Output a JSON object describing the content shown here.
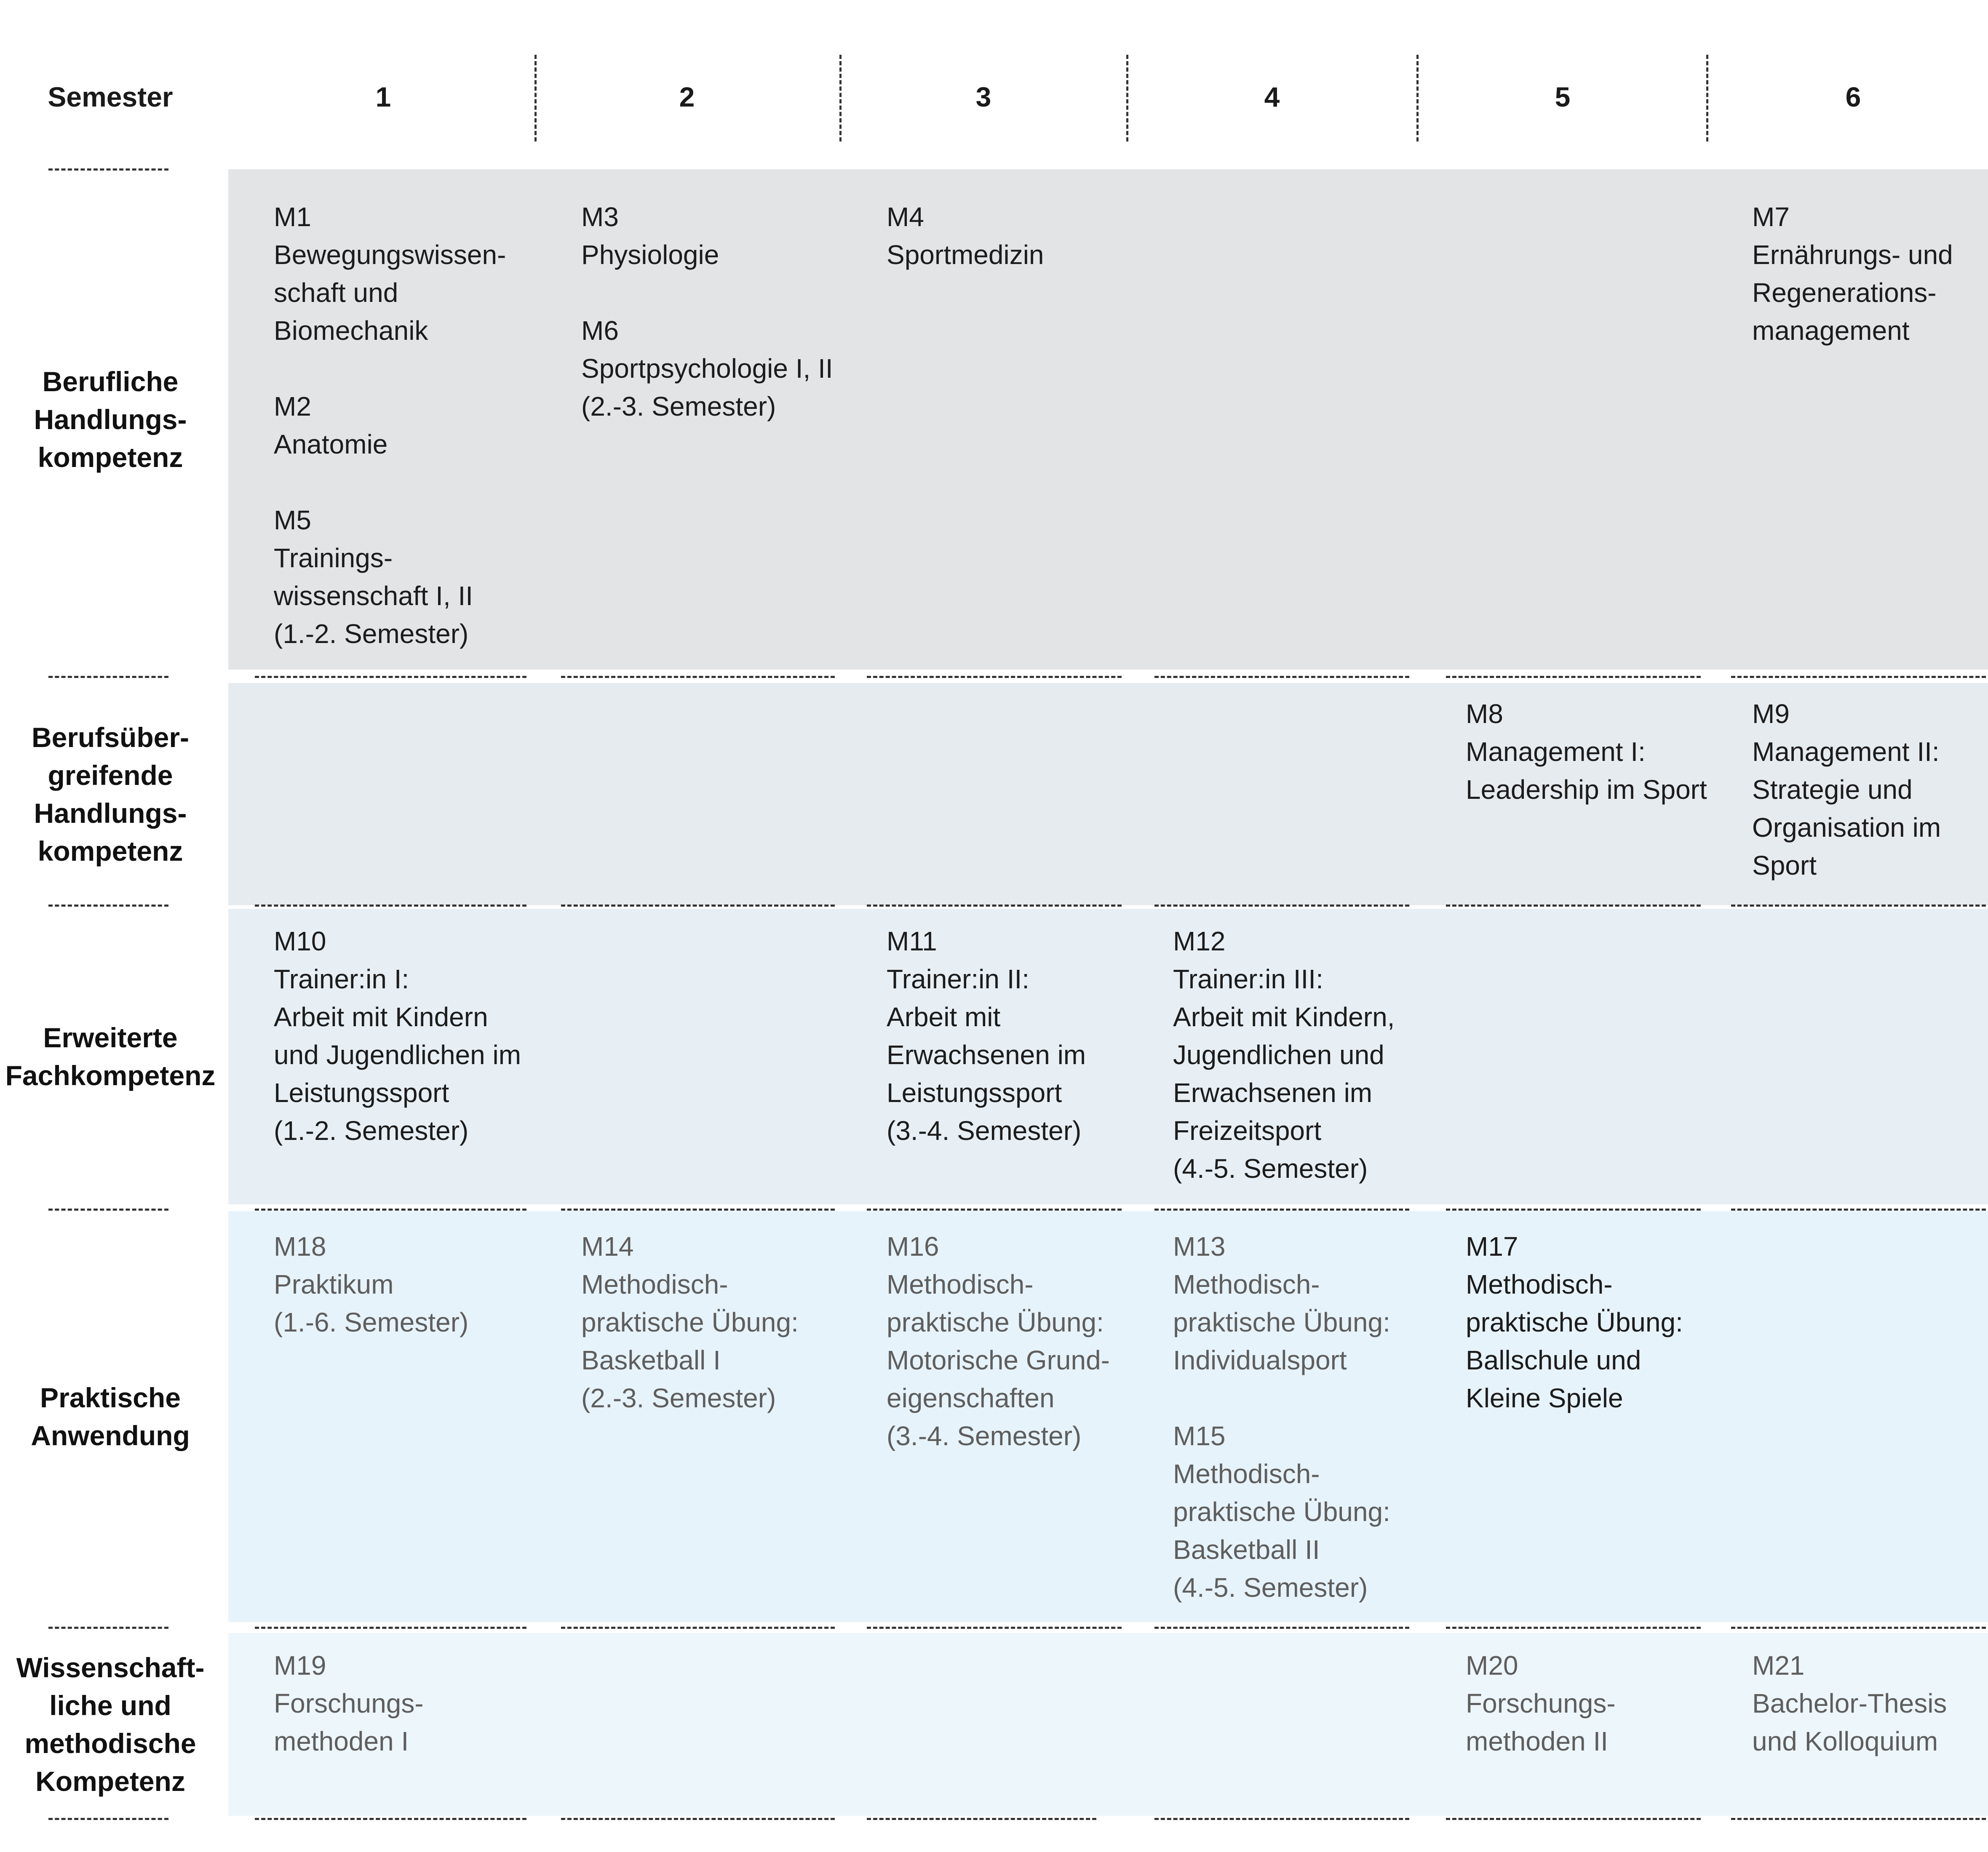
{
  "header": {
    "semester_label": "Semester",
    "columns": [
      "1",
      "2",
      "3",
      "4",
      "5",
      "6"
    ]
  },
  "colors": {
    "row1": "#e3e4e6",
    "row2": "#e6ebf0",
    "row3": "#e7eff5",
    "row4": "#e7f3fa",
    "row5": "#edf6fb"
  },
  "rows": [
    {
      "label": "Berufliche\nHandlungs-\nkompetenz",
      "cells": [
        {
          "col": 1,
          "text": "M1\nBewegungswissen-\nschaft und\nBiomechanik\n\nM2\nAnatomie\n\nM5\nTrainings-\nwissenschaft I, II\n(1.-2. Semester)",
          "tone": "dark"
        },
        {
          "col": 2,
          "text": "M3\nPhysiologie\n\nM6\nSportpsychologie I, II\n(2.-3. Semester)",
          "tone": "dark"
        },
        {
          "col": 3,
          "text": "M4\nSportmedizin",
          "tone": "dark"
        },
        {
          "col": 6,
          "text": "M7\nErnährungs- und\nRegenerations-\nmanagement",
          "tone": "dark"
        }
      ]
    },
    {
      "label": "Berufsüber-\ngreifende\nHandlungs-\nkompetenz",
      "cells": [
        {
          "col": 5,
          "text": "M8\nManagement I:\nLeadership im Sport",
          "tone": "dark"
        },
        {
          "col": 6,
          "text": "M9\nManagement II:\nStrategie und\nOrganisation im\nSport",
          "tone": "dark"
        }
      ]
    },
    {
      "label": "Erweiterte\nFachkompetenz",
      "cells": [
        {
          "col": 1,
          "text": "M10\nTrainer:in I:\nArbeit mit Kindern\nund Jugendlichen im\nLeistungssport\n(1.-2. Semester)",
          "tone": "dark"
        },
        {
          "col": 3,
          "text": "M11\nTrainer:in II:\nArbeit mit\nErwachsenen im\nLeistungssport\n(3.-4. Semester)",
          "tone": "dark"
        },
        {
          "col": 4,
          "text": "M12\nTrainer:in III:\nArbeit mit Kindern,\nJugendlichen und\nErwachsenen im\nFreizeitsport\n(4.-5. Semester)",
          "tone": "dark"
        }
      ]
    },
    {
      "label": "Praktische\nAnwendung",
      "cells": [
        {
          "col": 1,
          "text": "M18\nPraktikum\n(1.-6. Semester)",
          "tone": "grey"
        },
        {
          "col": 2,
          "text": "M14\nMethodisch-\npraktische Übung:\nBasketball I\n(2.-3. Semester)",
          "tone": "grey"
        },
        {
          "col": 3,
          "text": "M16\nMethodisch-\npraktische Übung:\nMotorische Grund-\neigenschaften\n(3.-4. Semester)",
          "tone": "grey"
        },
        {
          "col": 4,
          "text": "M13\nMethodisch-\npraktische Übung:\nIndividualsport\n\nM15\nMethodisch-\npraktische Übung:\nBasketball II\n(4.-5. Semester)",
          "tone": "grey"
        },
        {
          "col": 5,
          "text": "M17\nMethodisch-\npraktische Übung:\nBallschule und\nKleine Spiele",
          "tone": "dark"
        }
      ]
    },
    {
      "label": "Wissenschaft-\nliche und\nmethodische\nKompetenz",
      "cells": [
        {
          "col": 1,
          "text": "M19\nForschungs-\nmethoden I",
          "tone": "grey"
        },
        {
          "col": 5,
          "text": "M20\nForschungs-\nmethoden II",
          "tone": "grey"
        },
        {
          "col": 6,
          "text": "M21\nBachelor-Thesis\nund Kolloquium",
          "tone": "grey"
        }
      ]
    }
  ]
}
